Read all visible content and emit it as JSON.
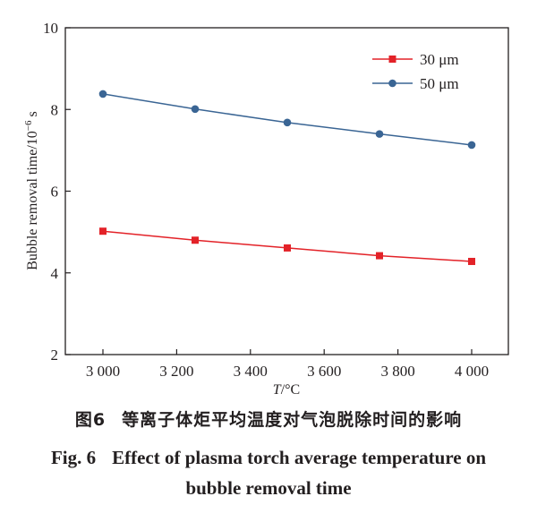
{
  "chart_data": {
    "type": "line",
    "title": "",
    "xlabel_italic": "T",
    "xlabel_rest": "/°C",
    "ylabel": "Bubble removal time/10",
    "ylabel_sup": "−6",
    "ylabel_unit": " s",
    "x": [
      3000,
      3250,
      3500,
      3750,
      4000
    ],
    "xlim": [
      3000,
      4000
    ],
    "xticks": [
      3000,
      3200,
      3400,
      3600,
      3800,
      4000
    ],
    "xtick_labels": [
      "3 000",
      "3 200",
      "3 400",
      "3 600",
      "3 800",
      "4 000"
    ],
    "ylim": [
      2,
      10
    ],
    "yticks": [
      2,
      4,
      6,
      8,
      10
    ],
    "ytick_labels": [
      "2",
      "4",
      "6",
      "8",
      "10"
    ],
    "grid": false,
    "legend_position": "top-right",
    "series": [
      {
        "name": "30 μm",
        "marker": "square",
        "color": "#e32228",
        "values": [
          5.02,
          4.8,
          4.61,
          4.42,
          4.28
        ]
      },
      {
        "name": "50 μm",
        "marker": "circle",
        "color": "#3a6594",
        "values": [
          8.38,
          8.01,
          7.68,
          7.4,
          7.13
        ]
      }
    ]
  },
  "caption": {
    "cn_label": "图6",
    "cn_text": "等离子体炬平均温度对气泡脱除时间的影响",
    "en_label": "Fig. 6",
    "en_text_line1": "Effect of plasma torch average temperature on",
    "en_text_line2": "bubble removal time"
  }
}
